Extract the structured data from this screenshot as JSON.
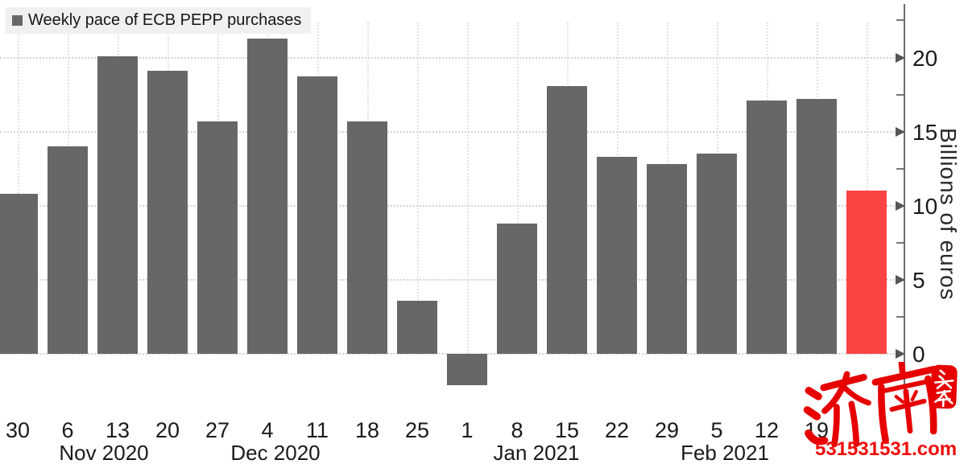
{
  "legend": {
    "label": "Weekly pace of ECB PEPP purchases",
    "swatch_color": "#676767"
  },
  "y_axis": {
    "title": "Billions of euros",
    "major_ticks": [
      0,
      5,
      10,
      15,
      20
    ],
    "minor_ticks": [
      2.5,
      7.5,
      12.5,
      17.5,
      22.5
    ]
  },
  "chart_data": {
    "type": "bar",
    "title": "Weekly pace of ECB PEPP purchases",
    "ylabel": "Billions of euros",
    "ylim": [
      -3.5,
      23.5
    ],
    "grid": "dotted",
    "legend_position": "top-left",
    "categories": [
      "30",
      "6",
      "13",
      "20",
      "27",
      "4",
      "11",
      "18",
      "25",
      "1",
      "8",
      "15",
      "22",
      "29",
      "5",
      "12",
      "19",
      ""
    ],
    "month_labels": [
      "Nov 2020",
      "Dec 2020",
      "Jan 2021",
      "Feb 2021"
    ],
    "values": [
      10.8,
      14.0,
      20.1,
      19.1,
      15.7,
      21.3,
      18.7,
      15.7,
      3.6,
      -2.1,
      8.8,
      18.1,
      13.3,
      12.8,
      13.5,
      17.1,
      17.2,
      11.0
    ],
    "bar_color_default": "#676767",
    "bar_color_highlight": "#fa4444",
    "highlight_index": 17,
    "unit": "billions of euros"
  },
  "watermark": {
    "brand_cn": "济南",
    "seal_cn": "头条",
    "site": "531531531.com",
    "color": "#e60000"
  }
}
